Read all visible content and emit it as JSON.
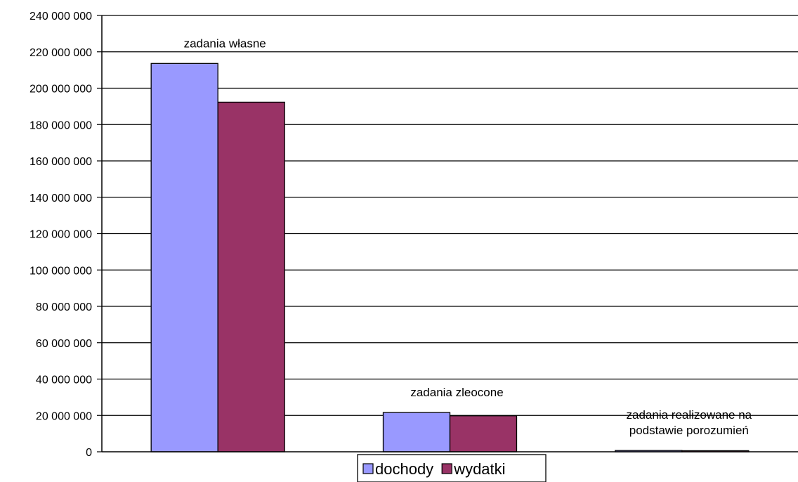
{
  "chart_data": {
    "type": "bar",
    "categories": [
      "zadania własne",
      "zadania zleocone",
      "zadania realizowane na podstawie porozumień"
    ],
    "category_label_lines": [
      [
        "zadania własne"
      ],
      [
        "zadania zleocone"
      ],
      [
        "zadania realizowane na",
        "podstawie porozumień"
      ]
    ],
    "series": [
      {
        "name": "dochody",
        "color": "#9999ff",
        "values": [
          213600000,
          21600000,
          700000
        ]
      },
      {
        "name": "wydatki",
        "color": "#993366",
        "values": [
          192300000,
          19800000,
          600000
        ]
      }
    ],
    "ylim": [
      0,
      240000000
    ],
    "yticks": [
      0,
      20000000,
      40000000,
      60000000,
      80000000,
      100000000,
      120000000,
      140000000,
      160000000,
      180000000,
      200000000,
      220000000,
      240000000
    ],
    "ytick_labels": [
      "0",
      "20 000 000",
      "40 000 000",
      "60 000 000",
      "80 000 000",
      "100 000 000",
      "120 000 000",
      "140 000 000",
      "160 000 000",
      "180 000 000",
      "200 000 000",
      "220 000 000",
      "240 000 000"
    ],
    "grid": true,
    "legend_position": "bottom"
  }
}
